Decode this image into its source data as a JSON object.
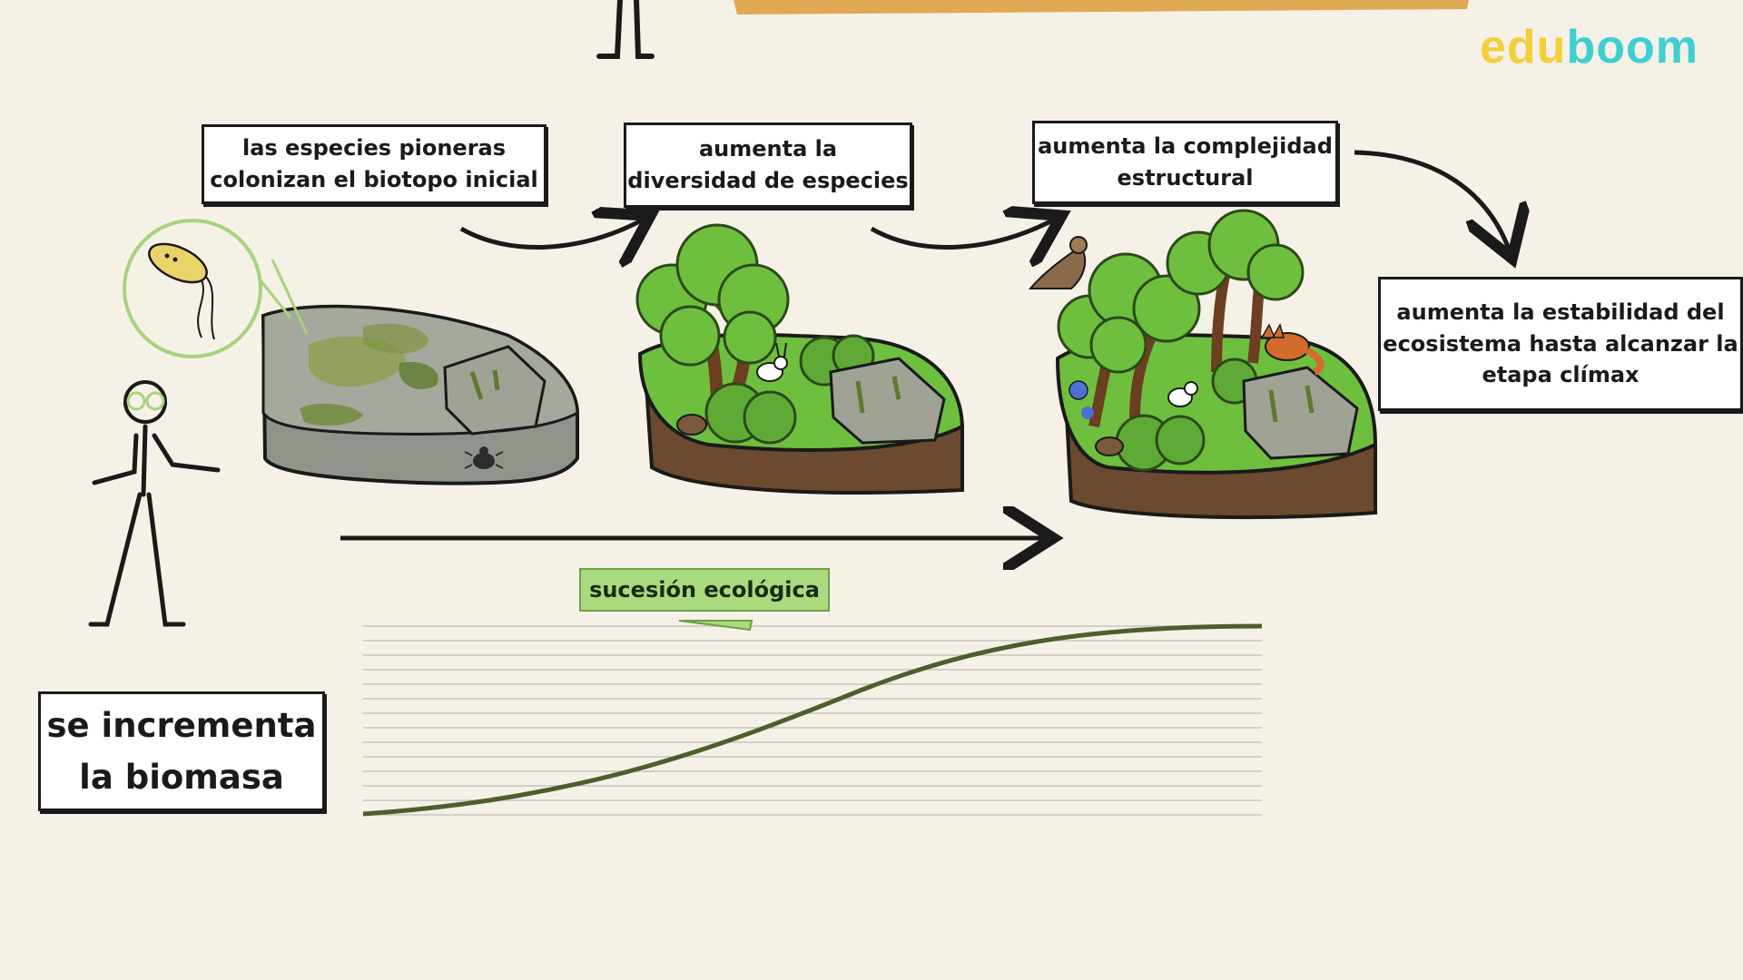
{
  "logo": {
    "part1": "edu",
    "part2": "boom",
    "color1": "#f4cf3a",
    "color2": "#3fcfd1"
  },
  "stages": [
    {
      "text": "las especies pioneras\ncolonizan el biotopo inicial"
    },
    {
      "text": "aumenta la\ndiversidad de especies"
    },
    {
      "text": "aumenta la complejidad\nestructural"
    },
    {
      "text": "aumenta la estabilidad del\necosistema hasta alcanzar la\netapa clímax"
    }
  ],
  "timeline_label": "sucesión ecológica",
  "biomass_label": "se incrementa\nla biomasa",
  "colors": {
    "background": "#f6f1e7",
    "grass": "#6fbf3f",
    "soil": "#6b4a2f",
    "rock": "#9a9f93",
    "curve": "#4d5e2e",
    "label_bg": "#a9db7e",
    "magnifier": "#a8d27c"
  },
  "icons": [
    "bacterium-icon",
    "beetle-icon",
    "rabbit-icon",
    "hedgehog-icon",
    "hawk-icon",
    "fox-icon",
    "stick-figure-icon"
  ]
}
